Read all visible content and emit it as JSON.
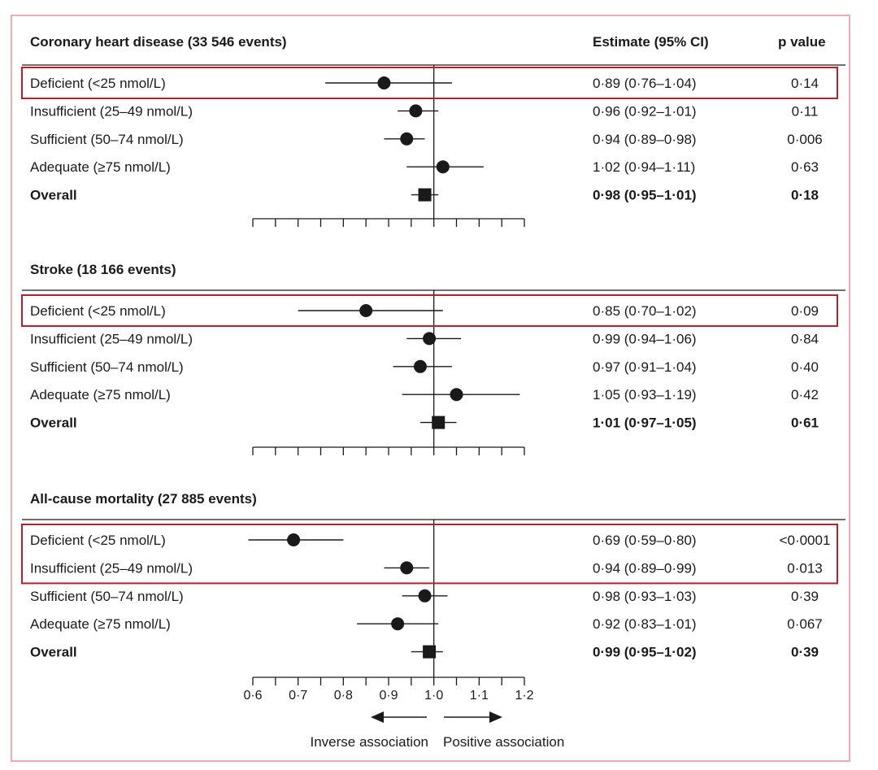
{
  "columns": {
    "estimate": "Estimate (95% CI)",
    "pvalue": "p value"
  },
  "colors": {
    "highlight": "#b0222c",
    "frame": "#e8aeb6",
    "ink": "#1a1a1a"
  },
  "axis": {
    "xlim": [
      0.6,
      1.2
    ],
    "ref": 1.0,
    "ticks": [
      0.6,
      0.7,
      0.8,
      0.9,
      1.0,
      1.1,
      1.2
    ],
    "tick_labels": [
      "0·6",
      "0·7",
      "0·8",
      "0·9",
      "1·0",
      "1·1",
      "1·2"
    ],
    "inverse_label": "Inverse association",
    "positive_label": "Positive association"
  },
  "chart_data": {
    "type": "forest",
    "panels": [
      {
        "title": "Coronary heart disease (33 546 events)",
        "highlight": [
          0
        ],
        "rows": [
          {
            "label": "Deficient (<25 nmol/L)",
            "est": 0.89,
            "lo": 0.76,
            "hi": 1.04,
            "ci_text": "0·89 (0·76–1·04)",
            "p": "0·14",
            "marker": "circle",
            "bold": false
          },
          {
            "label": "Insufficient (25–49 nmol/L)",
            "est": 0.96,
            "lo": 0.92,
            "hi": 1.01,
            "ci_text": "0·96 (0·92–1·01)",
            "p": "0·11",
            "marker": "circle",
            "bold": false
          },
          {
            "label": "Sufficient (50–74 nmol/L)",
            "est": 0.94,
            "lo": 0.89,
            "hi": 0.98,
            "ci_text": "0·94 (0·89–0·98)",
            "p": "0·006",
            "marker": "circle",
            "bold": false
          },
          {
            "label": "Adequate (≥75 nmol/L)",
            "est": 1.02,
            "lo": 0.94,
            "hi": 1.11,
            "ci_text": "1·02 (0·94–1·11)",
            "p": "0·63",
            "marker": "circle",
            "bold": false
          },
          {
            "label": "Overall",
            "est": 0.98,
            "lo": 0.95,
            "hi": 1.01,
            "ci_text": "0·98 (0·95–1·01)",
            "p": "0·18",
            "marker": "square",
            "bold": true
          }
        ]
      },
      {
        "title": "Stroke (18 166 events)",
        "highlight": [
          0
        ],
        "rows": [
          {
            "label": "Deficient (<25 nmol/L)",
            "est": 0.85,
            "lo": 0.7,
            "hi": 1.02,
            "ci_text": "0·85 (0·70–1·02)",
            "p": "0·09",
            "marker": "circle",
            "bold": false
          },
          {
            "label": "Insufficient (25–49 nmol/L)",
            "est": 0.99,
            "lo": 0.94,
            "hi": 1.06,
            "ci_text": "0·99 (0·94–1·06)",
            "p": "0·84",
            "marker": "circle",
            "bold": false
          },
          {
            "label": "Sufficient (50–74 nmol/L)",
            "est": 0.97,
            "lo": 0.91,
            "hi": 1.04,
            "ci_text": "0·97 (0·91–1·04)",
            "p": "0·40",
            "marker": "circle",
            "bold": false
          },
          {
            "label": "Adequate (≥75 nmol/L)",
            "est": 1.05,
            "lo": 0.93,
            "hi": 1.19,
            "ci_text": "1·05 (0·93–1·19)",
            "p": "0·42",
            "marker": "circle",
            "bold": false
          },
          {
            "label": "Overall",
            "est": 1.01,
            "lo": 0.97,
            "hi": 1.05,
            "ci_text": "1·01 (0·97–1·05)",
            "p": "0·61",
            "marker": "square",
            "bold": true
          }
        ]
      },
      {
        "title": "All-cause mortality (27 885 events)",
        "highlight": [
          0,
          1
        ],
        "rows": [
          {
            "label": "Deficient (<25 nmol/L)",
            "est": 0.69,
            "lo": 0.59,
            "hi": 0.8,
            "ci_text": "0·69 (0·59–0·80)",
            "p": "<0·0001",
            "marker": "circle",
            "bold": false
          },
          {
            "label": "Insufficient (25–49 nmol/L)",
            "est": 0.94,
            "lo": 0.89,
            "hi": 0.99,
            "ci_text": "0·94 (0·89–0·99)",
            "p": "0·013",
            "marker": "circle",
            "bold": false
          },
          {
            "label": "Sufficient (50–74 nmol/L)",
            "est": 0.98,
            "lo": 0.93,
            "hi": 1.03,
            "ci_text": "0·98 (0·93–1·03)",
            "p": "0·39",
            "marker": "circle",
            "bold": false
          },
          {
            "label": "Adequate (≥75 nmol/L)",
            "est": 0.92,
            "lo": 0.83,
            "hi": 1.01,
            "ci_text": "0·92 (0·83–1·01)",
            "p": "0·067",
            "marker": "circle",
            "bold": false
          },
          {
            "label": "Overall",
            "est": 0.99,
            "lo": 0.95,
            "hi": 1.02,
            "ci_text": "0·99 (0·95–1·02)",
            "p": "0·39",
            "marker": "square",
            "bold": true
          }
        ]
      }
    ]
  }
}
